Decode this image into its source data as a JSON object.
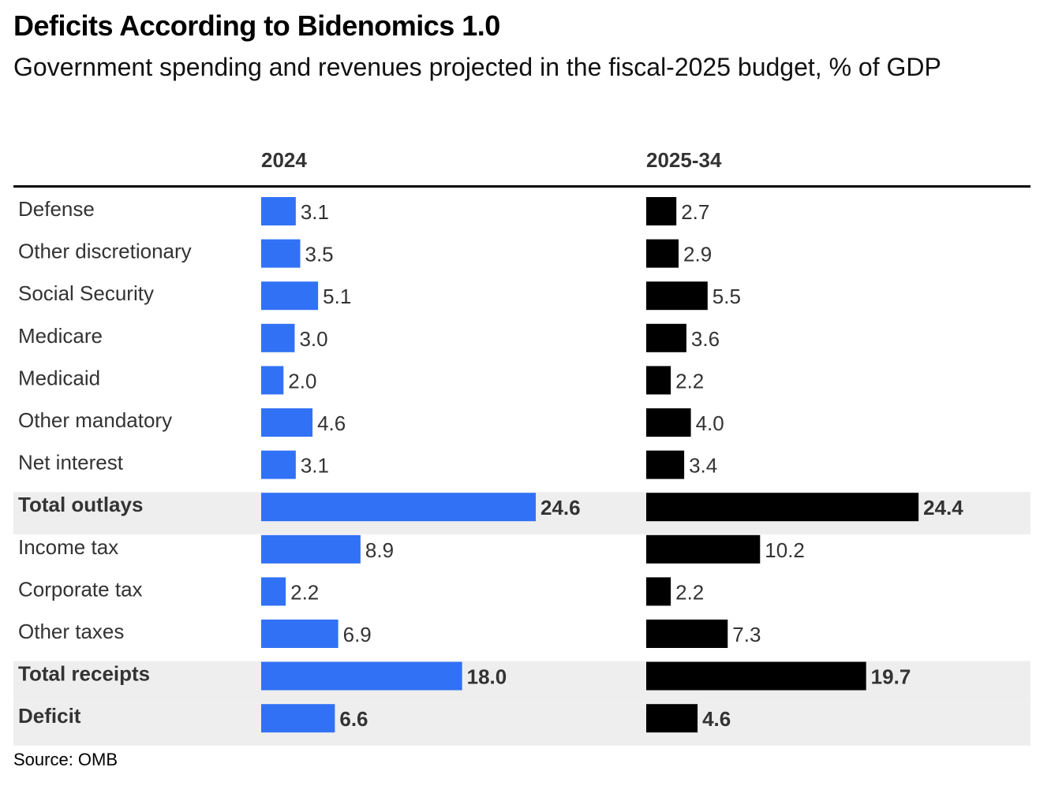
{
  "header": {
    "title": "Deficits According to Bidenomics 1.0",
    "subtitle": "Government spending and revenues projected in the fiscal-2025 budget, % of GDP"
  },
  "footer": {
    "source": "Source: OMB"
  },
  "colors": {
    "col_2024": "#3171F5",
    "col_2025_34": "#000000",
    "highlight_row": "#EEEEEE",
    "text": "#333333"
  },
  "chart_data": {
    "type": "bar",
    "orientation": "horizontal",
    "title": "Deficits According to Bidenomics 1.0",
    "subtitle": "Government spending and revenues projected in the fiscal-2025 budget, % of GDP",
    "unit": "% of GDP",
    "categories": [
      "Defense",
      "Other discretionary",
      "Social Security",
      "Medicare",
      "Medicaid",
      "Other mandatory",
      "Net interest",
      "Total outlays",
      "Income tax",
      "Corporate tax",
      "Other taxes",
      "Total receipts",
      "Deficit"
    ],
    "highlighted_categories": [
      "Total outlays",
      "Total receipts",
      "Deficit"
    ],
    "series": [
      {
        "name": "2024",
        "values": [
          3.1,
          3.5,
          5.1,
          3.0,
          2.0,
          4.6,
          3.1,
          24.6,
          8.9,
          2.2,
          6.9,
          18.0,
          6.6
        ],
        "labels": [
          "3.1",
          "3.5",
          "5.1",
          "3.0",
          "2.0",
          "4.6",
          "3.1",
          "24.6",
          "8.9",
          "2.2",
          "6.9",
          "18.0",
          "6.6"
        ]
      },
      {
        "name": "2025-34",
        "values": [
          2.7,
          2.9,
          5.5,
          3.6,
          2.2,
          4.0,
          3.4,
          24.4,
          10.2,
          2.2,
          7.3,
          19.7,
          4.6
        ],
        "labels": [
          "2.7",
          "2.9",
          "5.5",
          "3.6",
          "2.2",
          "4.0",
          "3.4",
          "24.4",
          "10.2",
          "2.2",
          "7.3",
          "19.7",
          "4.6"
        ]
      }
    ],
    "xlim": [
      0,
      24.6
    ],
    "grid": false,
    "legend": "none"
  }
}
